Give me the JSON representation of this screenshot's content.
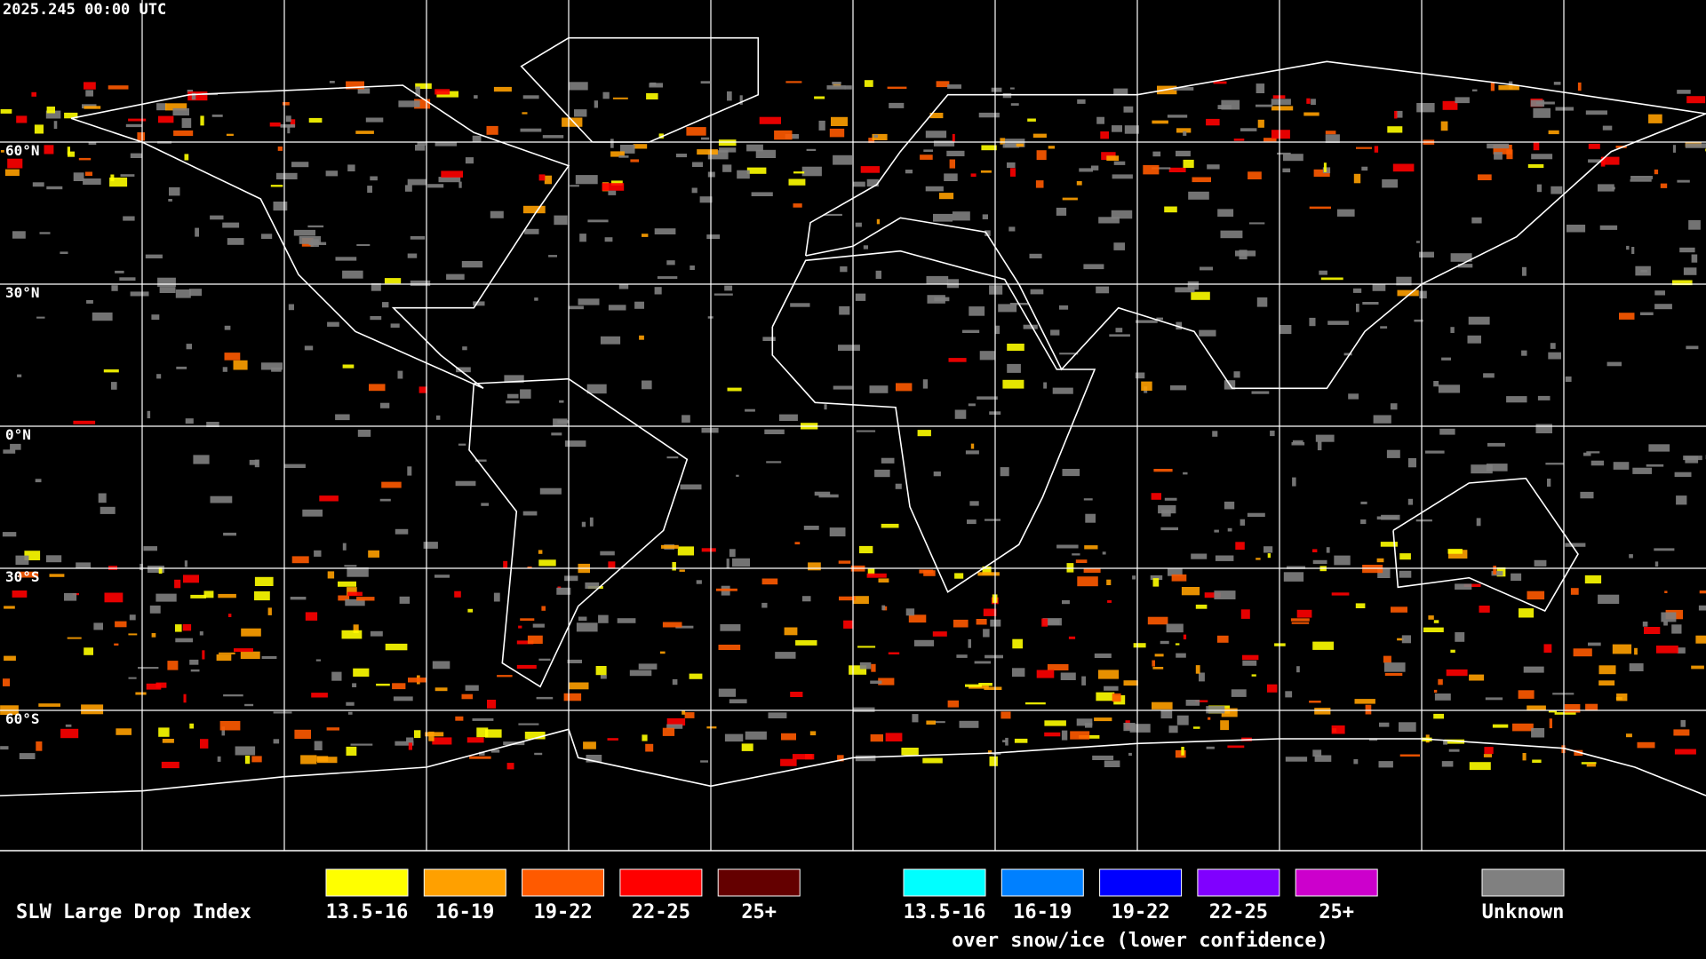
{
  "timestamp": "2025.245 00:00 UTC",
  "lat_labels": [
    "60°N",
    "30°N",
    "0°N",
    "30°S",
    "60°S"
  ],
  "legend": {
    "title": "SLW Large Drop Index",
    "items": [
      {
        "label": "13.5-16",
        "color": "#ffff00"
      },
      {
        "label": "16-19",
        "color": "#ffa000"
      },
      {
        "label": "19-22",
        "color": "#ff5a00"
      },
      {
        "label": "22-25",
        "color": "#ff0000"
      },
      {
        "label": "25+",
        "color": "#640000"
      }
    ],
    "snow_items": [
      {
        "label": "13.5-16",
        "color": "#00ffff"
      },
      {
        "label": "16-19",
        "color": "#0080ff"
      },
      {
        "label": "19-22",
        "color": "#0000ff"
      },
      {
        "label": "22-25",
        "color": "#8000ff"
      },
      {
        "label": "25+",
        "color": "#cc00cc"
      }
    ],
    "snow_caption": "over snow/ice (lower confidence)",
    "unknown": {
      "label": "Unknown",
      "color": "#808080"
    }
  }
}
